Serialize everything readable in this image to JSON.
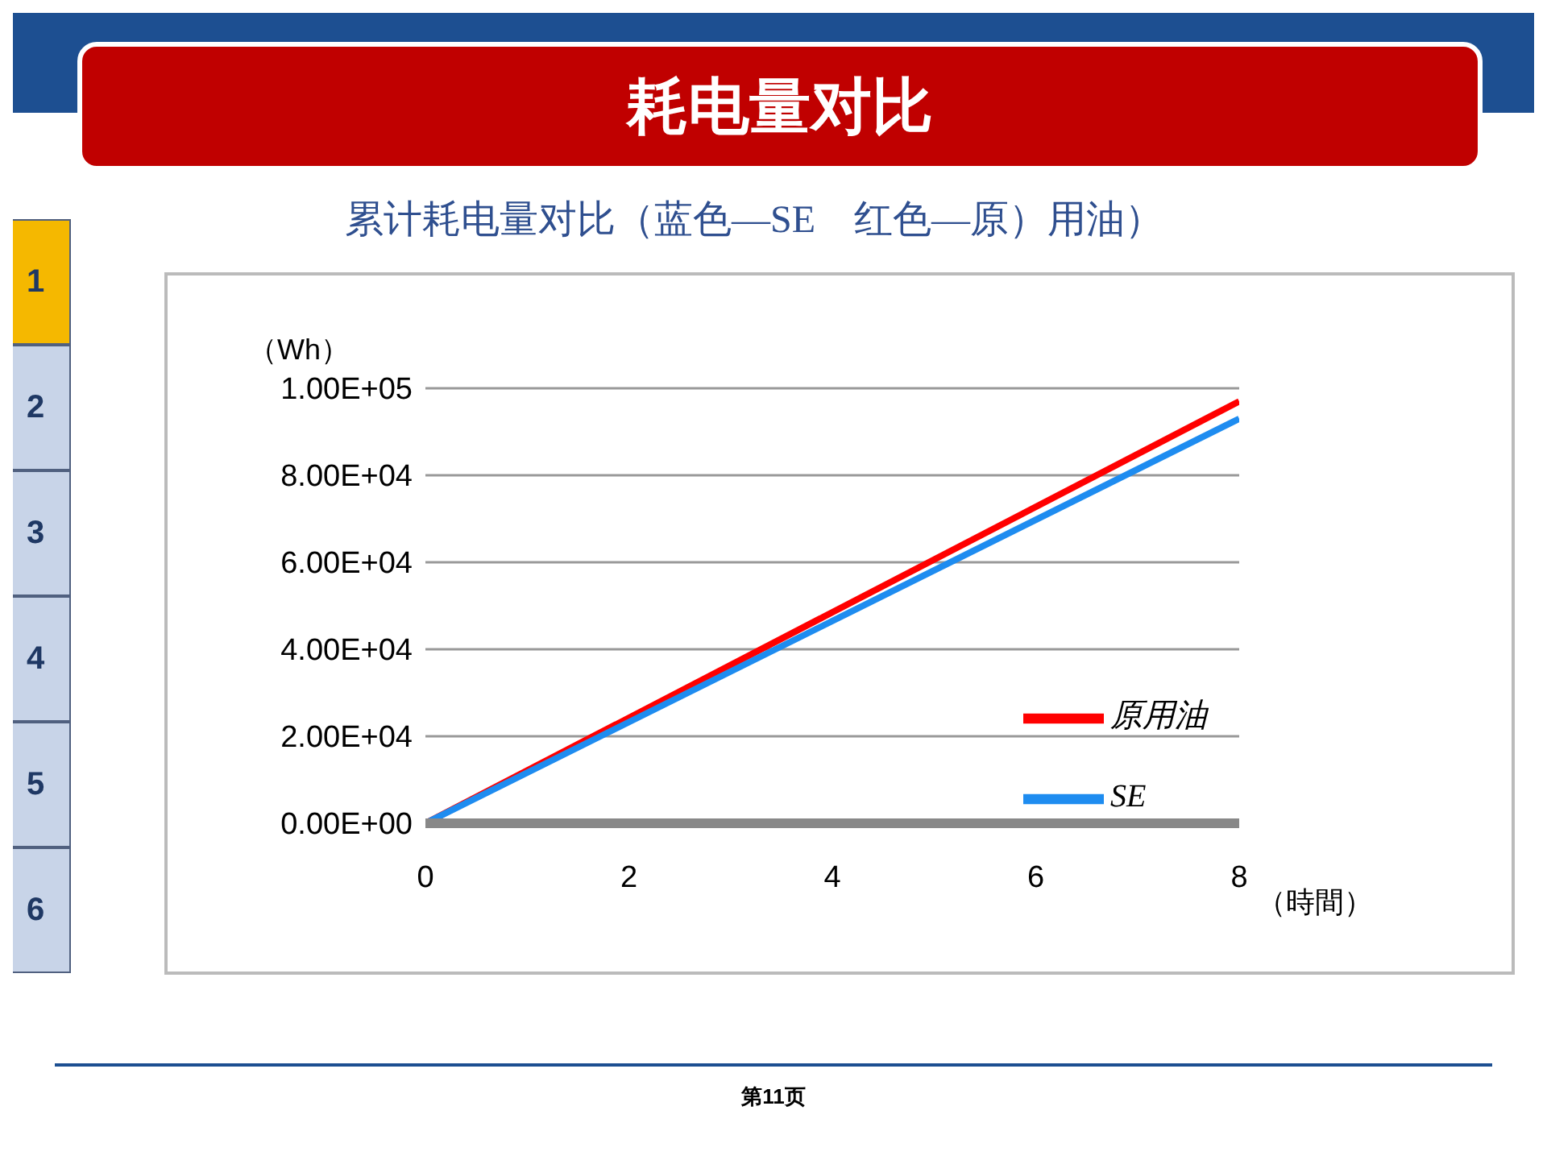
{
  "chart_data": {
    "type": "line",
    "title": "耗电量对比",
    "subtitle": "累计耗电量对比（蓝色—SE　红色—原）用油）",
    "xlabel": "（時間）",
    "ylabel": "（Wh）",
    "x": [
      0,
      8
    ],
    "series": [
      {
        "name": "原用油",
        "color": "#ff0000",
        "values": [
          0,
          97000
        ]
      },
      {
        "name": "SE",
        "color": "#1e8cf0",
        "values": [
          0,
          93000
        ]
      }
    ],
    "xlim": [
      0,
      8
    ],
    "xticks": [
      0,
      2,
      4,
      6,
      8
    ],
    "ylim": [
      0,
      100000
    ],
    "yticks": [
      {
        "value": 0,
        "label": "0.00E+00"
      },
      {
        "value": 20000,
        "label": "2.00E+04"
      },
      {
        "value": 40000,
        "label": "4.00E+04"
      },
      {
        "value": 60000,
        "label": "6.00E+04"
      },
      {
        "value": 80000,
        "label": "8.00E+04"
      },
      {
        "value": 100000,
        "label": "1.00E+05"
      }
    ],
    "grid": "y",
    "legend": "right",
    "marker": "none",
    "line_style": "solid",
    "annotations": [
      "1",
      "2",
      "3",
      "4",
      "5",
      "6",
      "第11页"
    ]
  }
}
